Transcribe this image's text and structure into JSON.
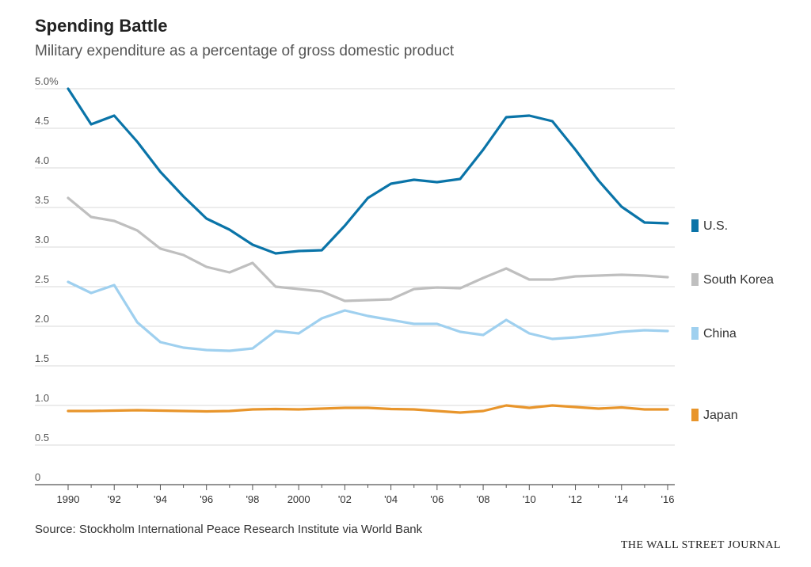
{
  "header": {
    "title": "Spending Battle",
    "subtitle": "Military expenditure as a percentage of gross domestic product"
  },
  "footer": {
    "source": "Source: Stockholm International Peace Research Institute via World Bank",
    "brand": "THE WALL STREET JOURNAL"
  },
  "chart_data": {
    "type": "line",
    "title": "Spending Battle",
    "subtitle": "Military expenditure as a percentage of gross domestic product",
    "x": [
      1990,
      1991,
      1992,
      1993,
      1994,
      1995,
      1996,
      1997,
      1998,
      1999,
      2000,
      2001,
      2002,
      2003,
      2004,
      2005,
      2006,
      2007,
      2008,
      2009,
      2010,
      2011,
      2012,
      2013,
      2014,
      2015,
      2016
    ],
    "x_tick_values": [
      1990,
      1992,
      1994,
      1996,
      1998,
      2000,
      2002,
      2004,
      2006,
      2008,
      2010,
      2012,
      2014,
      2016
    ],
    "x_tick_labels": [
      "1990",
      "'92",
      "'94",
      "'96",
      "'98",
      "2000",
      "'02",
      "'04",
      "'06",
      "'08",
      "'10",
      "'12",
      "'14",
      "'16"
    ],
    "y_tick_values": [
      0,
      0.5,
      1.0,
      1.5,
      2.0,
      2.5,
      3.0,
      3.5,
      4.0,
      4.5,
      5.0
    ],
    "y_tick_labels": [
      "0",
      "0.5",
      "1.0",
      "1.5",
      "2.0",
      "2.5",
      "3.0",
      "3.5",
      "4.0",
      "4.5",
      "5.0%"
    ],
    "ylim": [
      0,
      5.0
    ],
    "xlim": [
      1990,
      2016
    ],
    "grid": true,
    "legend_placement": "right",
    "series": [
      {
        "name": "U.S.",
        "color": "#0a74a8",
        "values": [
          5.0,
          4.55,
          4.66,
          4.33,
          3.95,
          3.64,
          3.36,
          3.22,
          3.03,
          2.92,
          2.95,
          2.96,
          3.27,
          3.62,
          3.8,
          3.85,
          3.82,
          3.86,
          4.23,
          4.64,
          4.66,
          4.59,
          4.23,
          3.84,
          3.51,
          3.31,
          3.3
        ]
      },
      {
        "name": "South Korea",
        "color": "#bfbfbf",
        "values": [
          3.62,
          3.38,
          3.33,
          3.21,
          2.98,
          2.9,
          2.75,
          2.68,
          2.8,
          2.5,
          2.47,
          2.44,
          2.32,
          2.33,
          2.34,
          2.47,
          2.49,
          2.48,
          2.61,
          2.73,
          2.59,
          2.59,
          2.63,
          2.64,
          2.65,
          2.64,
          2.62
        ]
      },
      {
        "name": "China",
        "color": "#9fd0ef",
        "values": [
          2.56,
          2.42,
          2.52,
          2.05,
          1.8,
          1.73,
          1.7,
          1.69,
          1.72,
          1.94,
          1.91,
          2.1,
          2.2,
          2.13,
          2.08,
          2.03,
          2.03,
          1.93,
          1.89,
          2.08,
          1.91,
          1.84,
          1.86,
          1.89,
          1.93,
          1.95,
          1.94
        ]
      },
      {
        "name": "Japan",
        "color": "#e8952b",
        "values": [
          0.93,
          0.93,
          0.935,
          0.94,
          0.935,
          0.93,
          0.925,
          0.93,
          0.95,
          0.955,
          0.95,
          0.96,
          0.97,
          0.97,
          0.955,
          0.95,
          0.93,
          0.91,
          0.93,
          1.0,
          0.97,
          1.0,
          0.98,
          0.96,
          0.975,
          0.95,
          0.95
        ]
      }
    ]
  }
}
